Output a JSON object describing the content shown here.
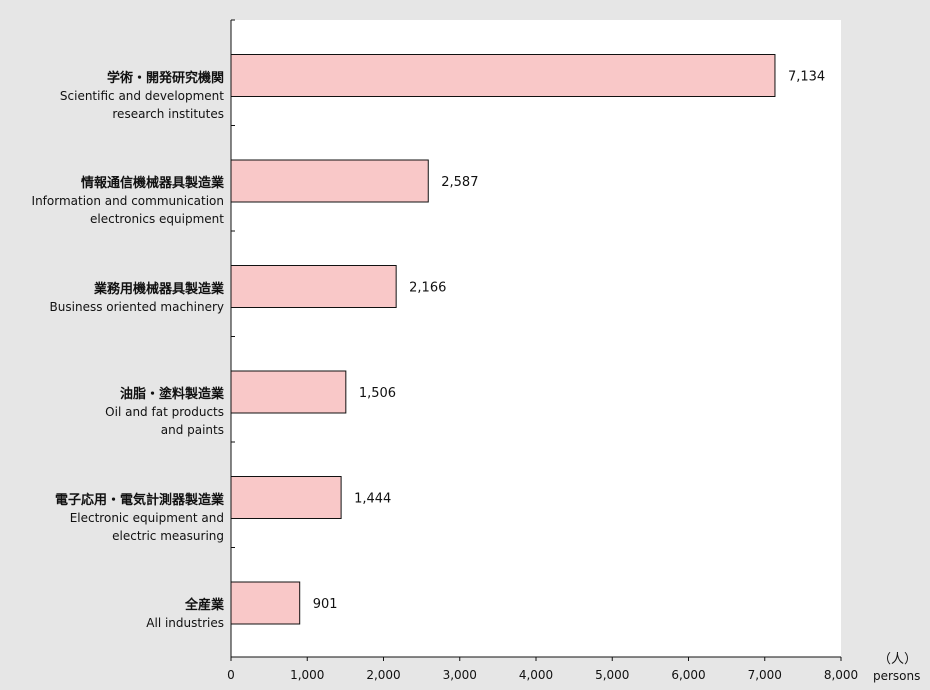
{
  "chart_data": {
    "type": "bar",
    "orientation": "horizontal",
    "categories": [
      {
        "jp": "学術・開発研究機関",
        "en": "Scientific and development\nresearch institutes",
        "value": 7134,
        "label": "7,134"
      },
      {
        "jp": "情報通信機械器具製造業",
        "en": "Information and communication\nelectronics equipment",
        "value": 2587,
        "label": "2,587"
      },
      {
        "jp": "業務用機械器具製造業",
        "en": "Business oriented machinery",
        "value": 2166,
        "label": "2,166"
      },
      {
        "jp": "油脂・塗料製造業",
        "en": "Oil and fat products\nand paints",
        "value": 1506,
        "label": "1,506"
      },
      {
        "jp": "電子応用・電気計測器製造業",
        "en": "Electronic equipment and\nelectric measuring",
        "value": 1444,
        "label": "1,444"
      },
      {
        "jp": "全産業",
        "en": "All industries",
        "value": 901,
        "label": "901"
      }
    ],
    "xlim": [
      0,
      8000
    ],
    "xticks": [
      0,
      1000,
      2000,
      3000,
      4000,
      5000,
      6000,
      7000,
      8000
    ],
    "xtick_labels": [
      "0",
      "1,000",
      "2,000",
      "3,000",
      "4,000",
      "5,000",
      "6,000",
      "7,000",
      "8,000"
    ],
    "unit_jp": "（人）",
    "unit_en": "persons",
    "bar_color": "#f9c8c8",
    "bar_stroke": "#111111",
    "grid": false
  }
}
